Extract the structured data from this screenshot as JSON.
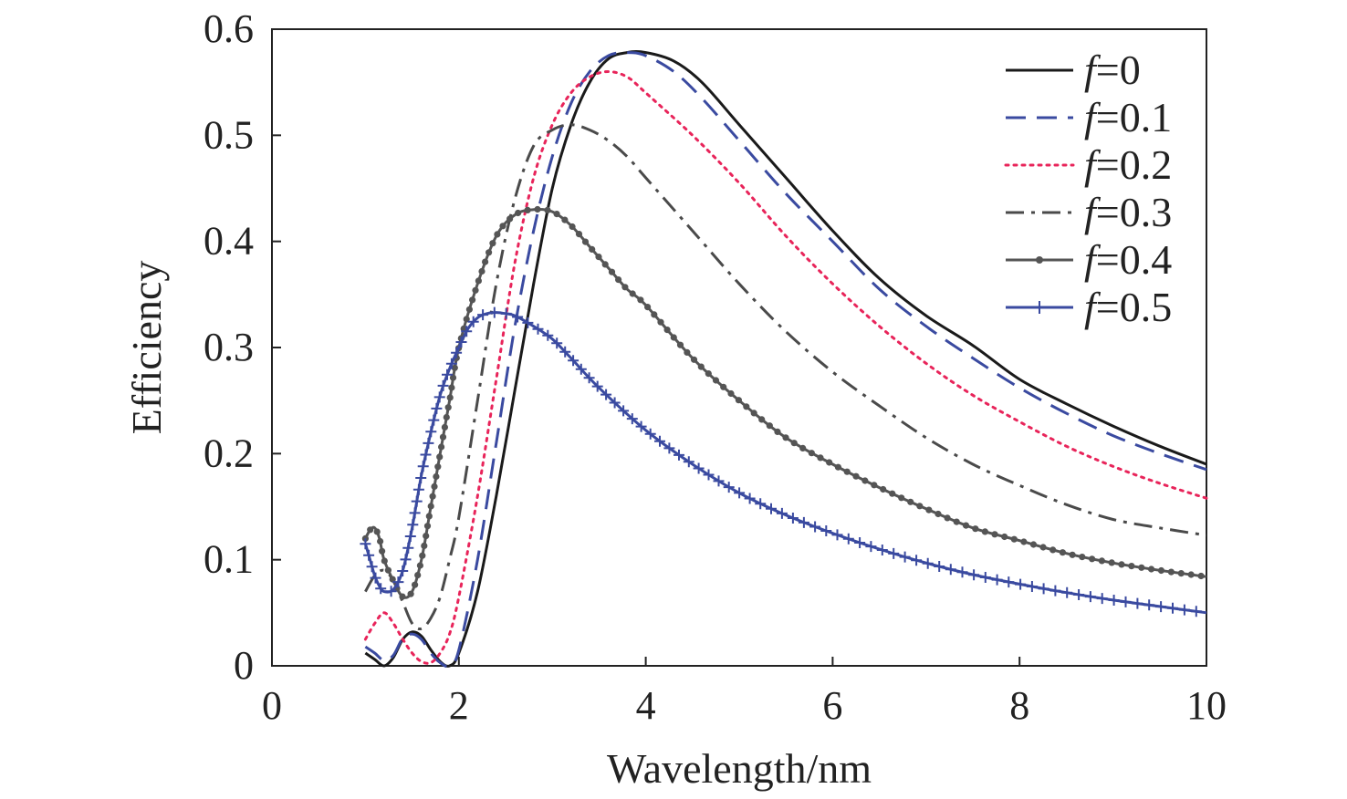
{
  "chart_data": {
    "type": "line",
    "title": "",
    "xlabel": "Wavelength/nm",
    "ylabel": "Efficiency",
    "xlim": [
      0,
      10
    ],
    "ylim": [
      0,
      0.6
    ],
    "xticks": [
      0,
      2,
      4,
      6,
      8,
      10
    ],
    "xtick_labels": [
      "0",
      "2",
      "4",
      "6",
      "8",
      "10"
    ],
    "yticks": [
      0,
      0.1,
      0.2,
      0.3,
      0.4,
      0.5,
      0.6
    ],
    "ytick_labels": [
      "0",
      "0.1",
      "0.2",
      "0.3",
      "0.4",
      "0.5",
      "0.6"
    ],
    "grid": false,
    "legend_position": "top-right",
    "series": [
      {
        "name": "f=0",
        "name_italic": "f",
        "name_rest": "=0",
        "color": "#1a1a1a",
        "style": "solid",
        "marker": "none",
        "x": [
          1.0,
          1.1,
          1.2,
          1.3,
          1.4,
          1.5,
          1.6,
          1.7,
          1.8,
          1.9,
          2.0,
          2.2,
          2.4,
          2.6,
          2.8,
          3.0,
          3.2,
          3.4,
          3.6,
          3.8,
          4.0,
          4.3,
          4.6,
          5.0,
          5.5,
          6.0,
          6.5,
          7.0,
          7.5,
          8.0,
          8.5,
          9.0,
          9.5,
          10.0
        ],
        "y": [
          0.012,
          0.006,
          0.0,
          0.008,
          0.025,
          0.032,
          0.028,
          0.015,
          0.004,
          0.0,
          0.012,
          0.07,
          0.16,
          0.26,
          0.36,
          0.45,
          0.51,
          0.55,
          0.572,
          0.578,
          0.578,
          0.57,
          0.55,
          0.51,
          0.46,
          0.41,
          0.365,
          0.33,
          0.302,
          0.27,
          0.247,
          0.226,
          0.207,
          0.19
        ]
      },
      {
        "name": "f=0.1",
        "name_italic": "f",
        "name_rest": "=0.1",
        "color": "#3a4aa0",
        "style": "dashed",
        "marker": "none",
        "x": [
          1.0,
          1.1,
          1.2,
          1.3,
          1.4,
          1.5,
          1.6,
          1.7,
          1.8,
          1.9,
          2.0,
          2.2,
          2.4,
          2.6,
          2.8,
          3.0,
          3.2,
          3.4,
          3.6,
          3.8,
          4.0,
          4.3,
          4.6,
          5.0,
          5.5,
          6.0,
          6.5,
          7.0,
          7.5,
          8.0,
          8.5,
          9.0,
          9.5,
          10.0
        ],
        "y": [
          0.018,
          0.012,
          0.005,
          0.01,
          0.026,
          0.03,
          0.025,
          0.012,
          0.003,
          0.0,
          0.015,
          0.1,
          0.21,
          0.32,
          0.41,
          0.48,
          0.53,
          0.56,
          0.575,
          0.578,
          0.575,
          0.56,
          0.535,
          0.495,
          0.445,
          0.4,
          0.355,
          0.32,
          0.29,
          0.262,
          0.238,
          0.217,
          0.2,
          0.185
        ]
      },
      {
        "name": "f=0.2",
        "name_italic": "f",
        "name_rest": "=0.2",
        "color": "#e8245a",
        "style": "dotted",
        "marker": "none",
        "x": [
          1.0,
          1.1,
          1.2,
          1.3,
          1.4,
          1.5,
          1.6,
          1.7,
          1.8,
          1.9,
          2.0,
          2.2,
          2.4,
          2.6,
          2.8,
          3.0,
          3.2,
          3.4,
          3.6,
          3.8,
          4.0,
          4.5,
          5.0,
          5.5,
          6.0,
          6.5,
          7.0,
          7.5,
          8.0,
          8.5,
          9.0,
          9.5,
          10.0
        ],
        "y": [
          0.025,
          0.04,
          0.05,
          0.04,
          0.025,
          0.012,
          0.004,
          0.003,
          0.012,
          0.03,
          0.065,
          0.16,
          0.27,
          0.38,
          0.46,
          0.51,
          0.54,
          0.555,
          0.56,
          0.555,
          0.54,
          0.5,
          0.455,
          0.405,
          0.36,
          0.32,
          0.285,
          0.255,
          0.23,
          0.207,
          0.188,
          0.172,
          0.158
        ]
      },
      {
        "name": "f=0.3",
        "name_italic": "f",
        "name_rest": "=0.3",
        "color": "#4a4a4a",
        "style": "dashdot",
        "marker": "none",
        "x": [
          1.0,
          1.1,
          1.2,
          1.3,
          1.4,
          1.5,
          1.6,
          1.7,
          1.8,
          1.9,
          2.0,
          2.2,
          2.4,
          2.6,
          2.8,
          3.0,
          3.2,
          3.4,
          3.6,
          3.8,
          4.0,
          4.5,
          5.0,
          5.5,
          6.0,
          6.5,
          7.0,
          7.5,
          8.0,
          8.5,
          9.0,
          9.5,
          10.0
        ],
        "y": [
          0.07,
          0.085,
          0.09,
          0.08,
          0.06,
          0.04,
          0.035,
          0.045,
          0.065,
          0.1,
          0.14,
          0.25,
          0.36,
          0.44,
          0.49,
          0.505,
          0.51,
          0.505,
          0.495,
          0.48,
          0.46,
          0.41,
          0.36,
          0.315,
          0.277,
          0.245,
          0.215,
          0.19,
          0.17,
          0.152,
          0.138,
          0.13,
          0.123
        ]
      },
      {
        "name": "f=0.4",
        "name_italic": "f",
        "name_rest": "=0.4",
        "color": "#555555",
        "style": "solid",
        "marker": "dot",
        "x": [
          1.0,
          1.05,
          1.1,
          1.15,
          1.2,
          1.3,
          1.4,
          1.5,
          1.6,
          1.7,
          1.8,
          1.9,
          2.0,
          2.2,
          2.4,
          2.6,
          2.8,
          3.0,
          3.2,
          3.4,
          3.6,
          3.8,
          4.0,
          4.5,
          5.0,
          5.5,
          6.0,
          6.5,
          7.0,
          7.5,
          8.0,
          8.5,
          9.0,
          9.5,
          10.0
        ],
        "y": [
          0.12,
          0.128,
          0.13,
          0.12,
          0.1,
          0.08,
          0.065,
          0.07,
          0.1,
          0.15,
          0.2,
          0.25,
          0.3,
          0.36,
          0.405,
          0.425,
          0.43,
          0.428,
          0.415,
          0.395,
          0.375,
          0.355,
          0.34,
          0.29,
          0.25,
          0.215,
          0.19,
          0.168,
          0.148,
          0.13,
          0.118,
          0.106,
          0.097,
          0.09,
          0.084
        ]
      },
      {
        "name": "f=0.5",
        "name_italic": "f",
        "name_rest": "=0.5",
        "color": "#3a4aa0",
        "style": "solid",
        "marker": "plus",
        "x": [
          1.0,
          1.05,
          1.1,
          1.15,
          1.2,
          1.3,
          1.4,
          1.5,
          1.6,
          1.7,
          1.8,
          1.9,
          2.0,
          2.1,
          2.2,
          2.3,
          2.4,
          2.5,
          2.6,
          2.8,
          3.0,
          3.2,
          3.5,
          4.0,
          4.5,
          5.0,
          5.5,
          6.0,
          6.5,
          7.0,
          7.5,
          8.0,
          8.5,
          9.0,
          9.5,
          10.0
        ],
        "y": [
          0.115,
          0.1,
          0.085,
          0.075,
          0.07,
          0.072,
          0.09,
          0.13,
          0.18,
          0.22,
          0.255,
          0.28,
          0.3,
          0.318,
          0.328,
          0.332,
          0.333,
          0.332,
          0.33,
          0.32,
          0.308,
          0.29,
          0.262,
          0.222,
          0.19,
          0.163,
          0.142,
          0.125,
          0.11,
          0.097,
          0.086,
          0.077,
          0.069,
          0.062,
          0.056,
          0.05
        ]
      }
    ]
  }
}
